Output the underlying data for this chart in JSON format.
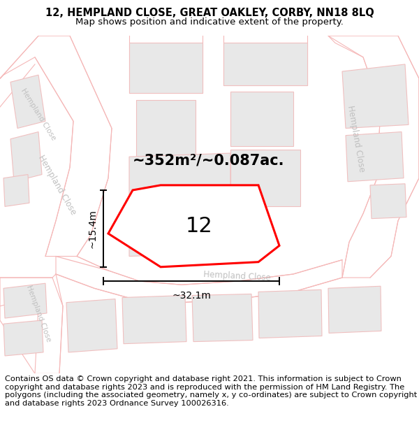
{
  "title_line1": "12, HEMPLAND CLOSE, GREAT OAKLEY, CORBY, NN18 8LQ",
  "title_line2": "Map shows position and indicative extent of the property.",
  "footer_text": "Contains OS data © Crown copyright and database right 2021. This information is subject to Crown copyright and database rights 2023 and is reproduced with the permission of HM Land Registry. The polygons (including the associated geometry, namely x, y co-ordinates) are subject to Crown copyright and database rights 2023 Ordnance Survey 100026316.",
  "area_label": "~352m²/~0.087ac.",
  "property_number": "12",
  "dim_width": "~32.1m",
  "dim_height": "~15.4m",
  "street_label_main": "Hempland Close",
  "street_label_left": "Hempland Close",
  "street_label_right": "Hempland Close",
  "street_label_topleft": "Hempland Close",
  "bg_color": "#ffffff",
  "road_line_color": "#f5b8b8",
  "building_fill": "#e8e8e8",
  "building_edge": "#f0c0c0",
  "road_fill": "#ffffff",
  "property_fill": "#e8e8e8",
  "property_edge": "#ff0000",
  "street_label_color": "#c0c0c0",
  "title_fontsize": 10.5,
  "subtitle_fontsize": 9.5,
  "footer_fontsize": 8.2,
  "area_fontsize": 15,
  "number_fontsize": 22,
  "dim_fontsize": 10
}
